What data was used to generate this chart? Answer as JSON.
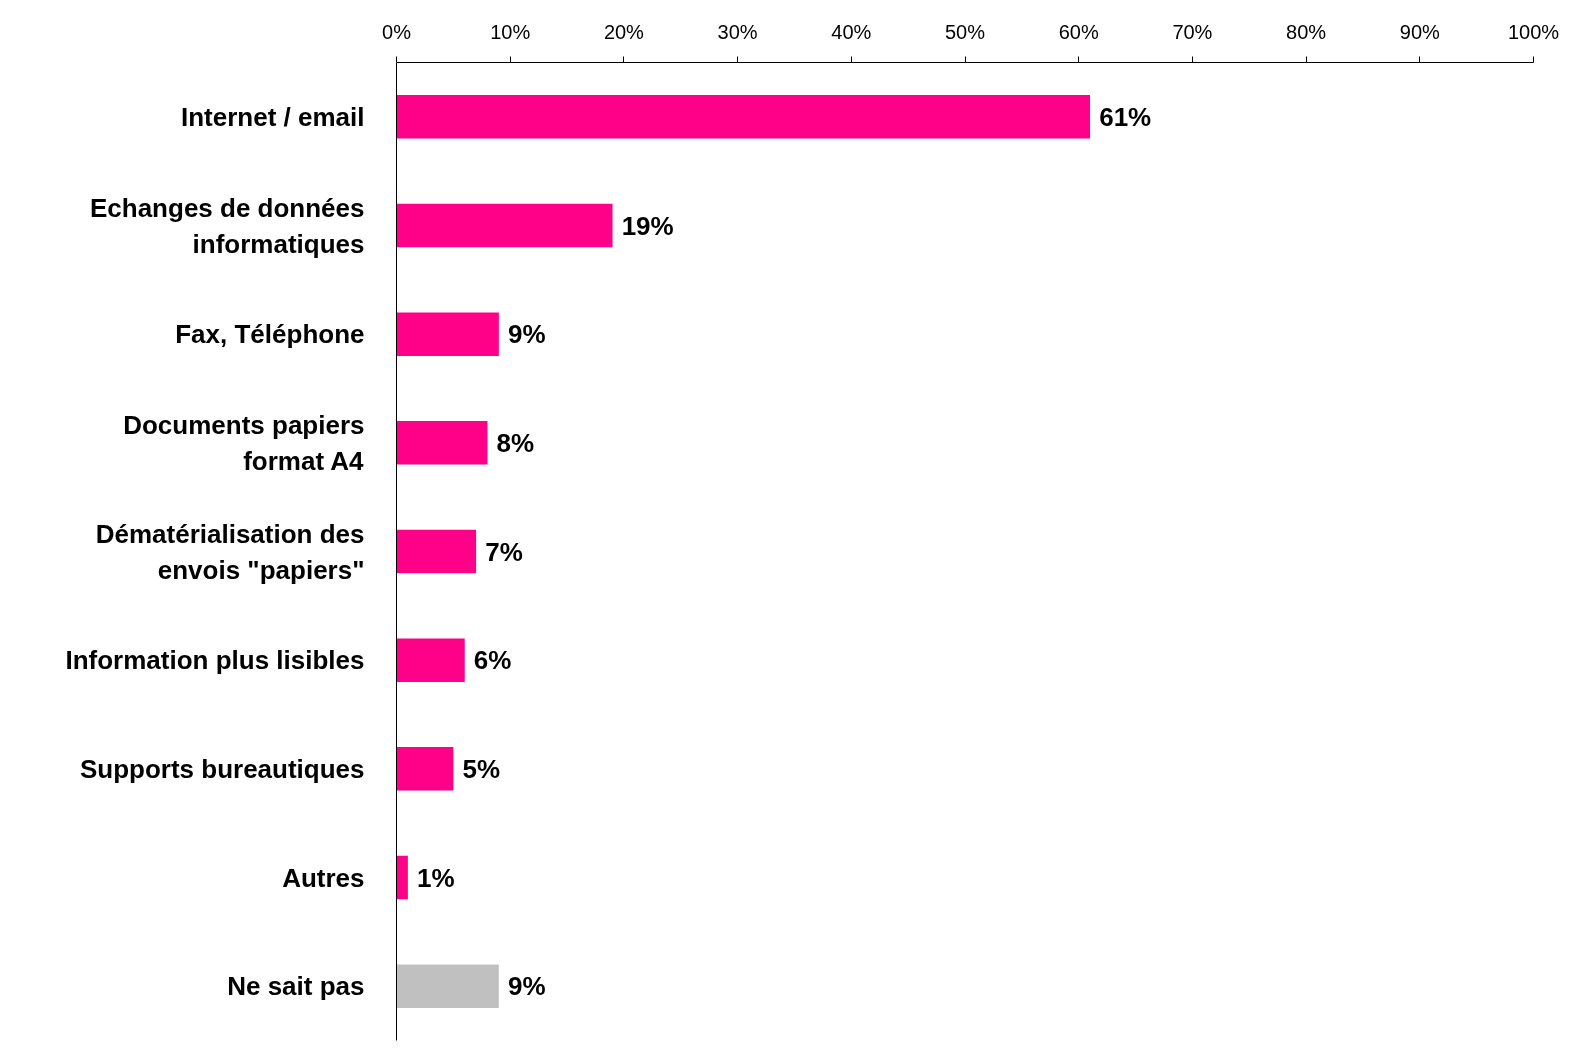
{
  "chart_data": {
    "type": "bar",
    "orientation": "horizontal",
    "categories": [
      "Internet / email",
      "Echanges de données informatiques",
      "Fax, Téléphone",
      "Documents papiers format A4",
      "Dématérialisation des envois \"papiers\"",
      "Information plus lisibles",
      "Supports bureautiques",
      "Autres",
      "Ne sait pas"
    ],
    "values": [
      61,
      19,
      9,
      8,
      7,
      6,
      5,
      1,
      9
    ],
    "value_labels": [
      "61%",
      "19%",
      "9%",
      "8%",
      "7%",
      "6%",
      "5%",
      "1%",
      "9%"
    ],
    "colors": [
      "#ff0088",
      "#ff0088",
      "#ff0088",
      "#ff0088",
      "#ff0088",
      "#ff0088",
      "#ff0088",
      "#ff0088",
      "#c0c0c0"
    ],
    "xlim": [
      0,
      100
    ],
    "xticks": [
      {
        "value": 0,
        "label": "0%"
      },
      {
        "value": 10,
        "label": "10%"
      },
      {
        "value": 20,
        "label": "20%"
      },
      {
        "value": 30,
        "label": "30%"
      },
      {
        "value": 40,
        "label": "40%"
      },
      {
        "value": 50,
        "label": "50%"
      },
      {
        "value": 60,
        "label": "60%"
      },
      {
        "value": 70,
        "label": "70%"
      },
      {
        "value": 80,
        "label": "80%"
      },
      {
        "value": 90,
        "label": "90%"
      },
      {
        "value": 100,
        "label": "100%"
      }
    ],
    "grid": false
  }
}
